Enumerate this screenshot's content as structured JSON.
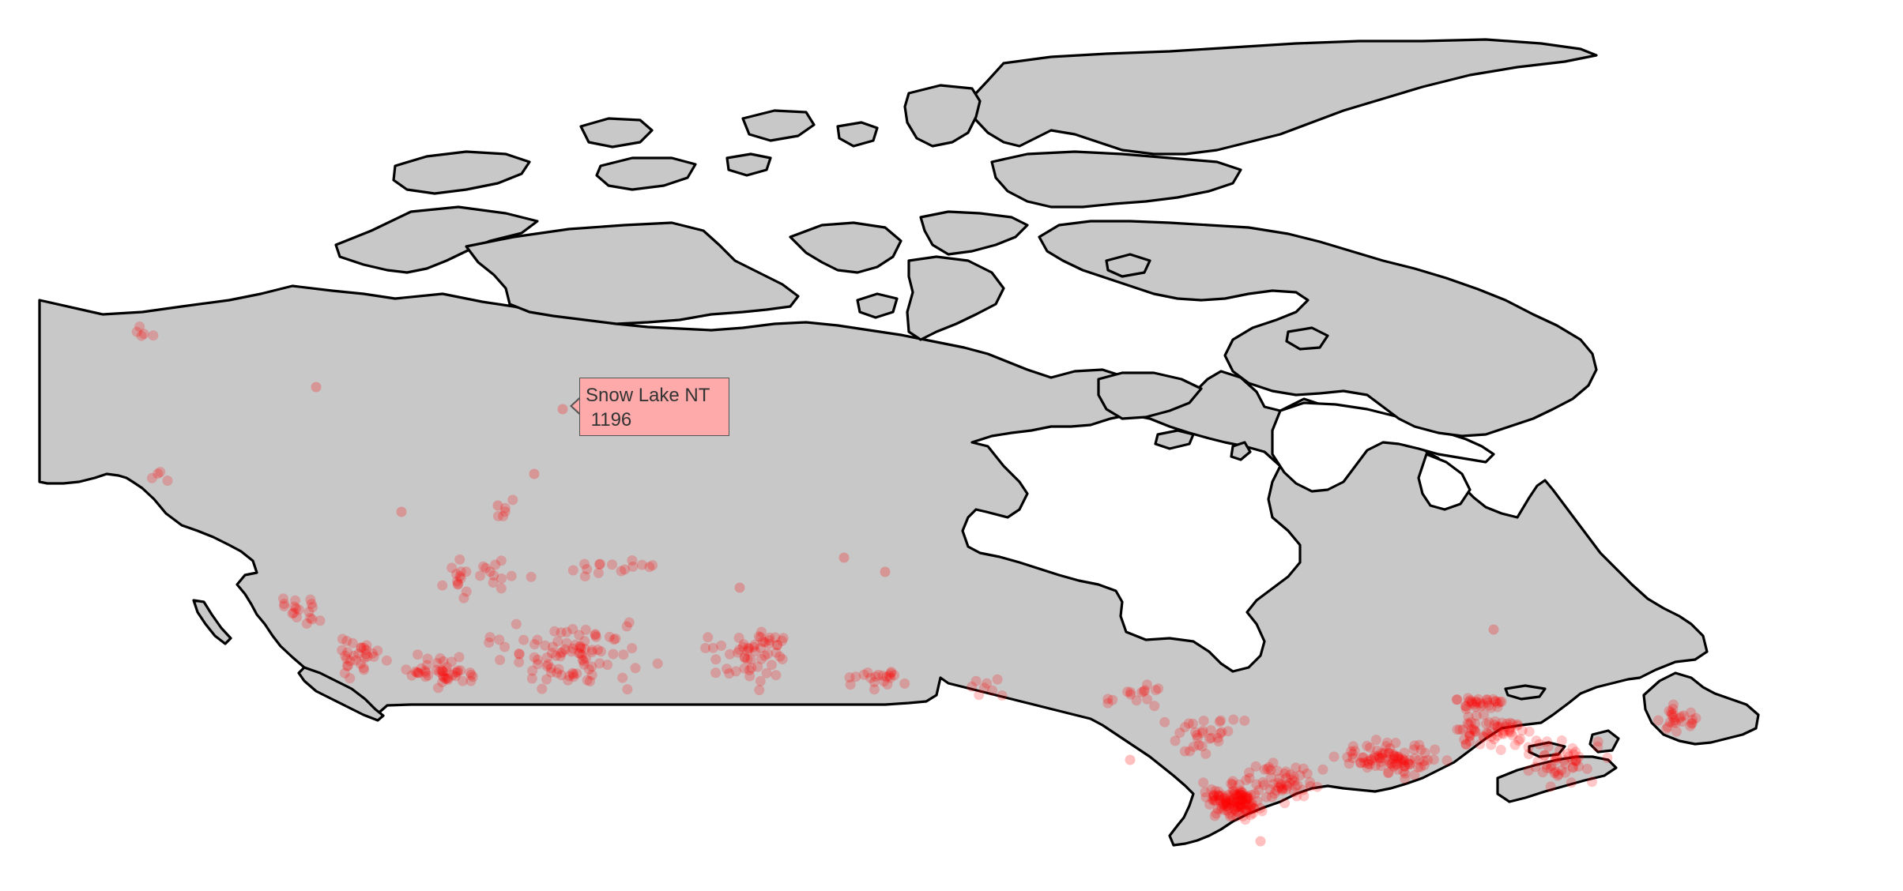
{
  "map": {
    "region": "Canada",
    "land_color": "#c8c8c8",
    "water_color": "#ffffff",
    "marker_color": "#ff0000"
  },
  "tooltip": {
    "title": "Snow Lake NT",
    "value": "1196"
  }
}
